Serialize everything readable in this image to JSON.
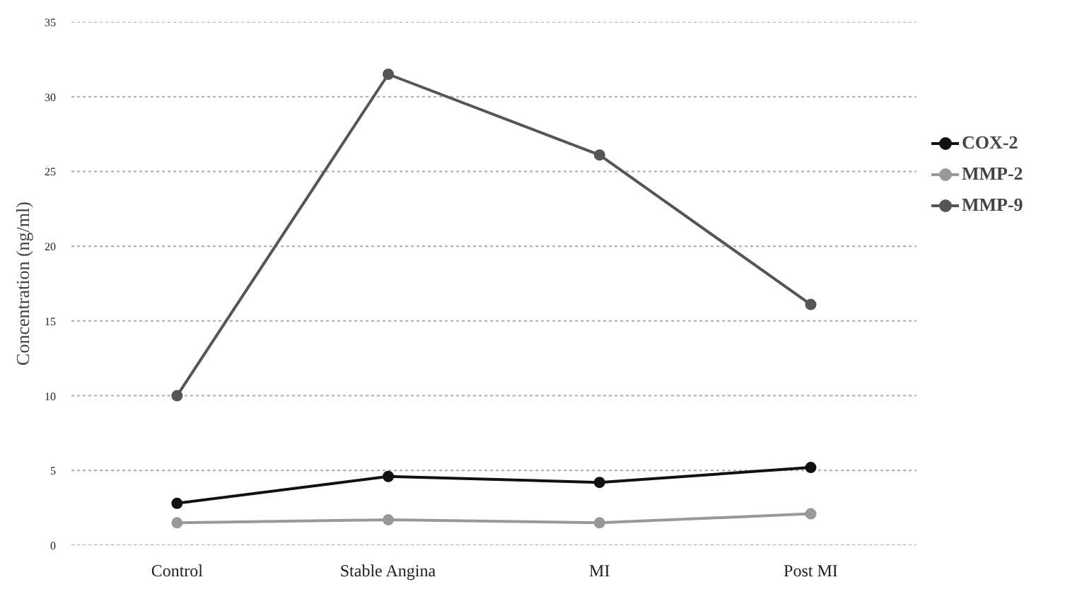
{
  "chart_data": {
    "type": "line",
    "ylabel": "Concentration (ng/ml)",
    "categories": [
      "Control",
      "Stable Angina",
      "MI",
      "Post MI"
    ],
    "series": [
      {
        "name": "COX-2",
        "color": "#111111",
        "values": [
          2.8,
          4.6,
          4.2,
          5.2
        ]
      },
      {
        "name": "MMP-2",
        "color": "#999999",
        "values": [
          1.5,
          1.7,
          1.5,
          2.1
        ]
      },
      {
        "name": "MMP-9",
        "color": "#555555",
        "values": [
          10,
          31.5,
          26.1,
          16.1
        ]
      }
    ],
    "ylim": [
      0,
      35
    ],
    "yticks": [
      0,
      5,
      10,
      15,
      20,
      25,
      30,
      35
    ],
    "grid": "y",
    "legend": "right",
    "marker": "circle"
  }
}
